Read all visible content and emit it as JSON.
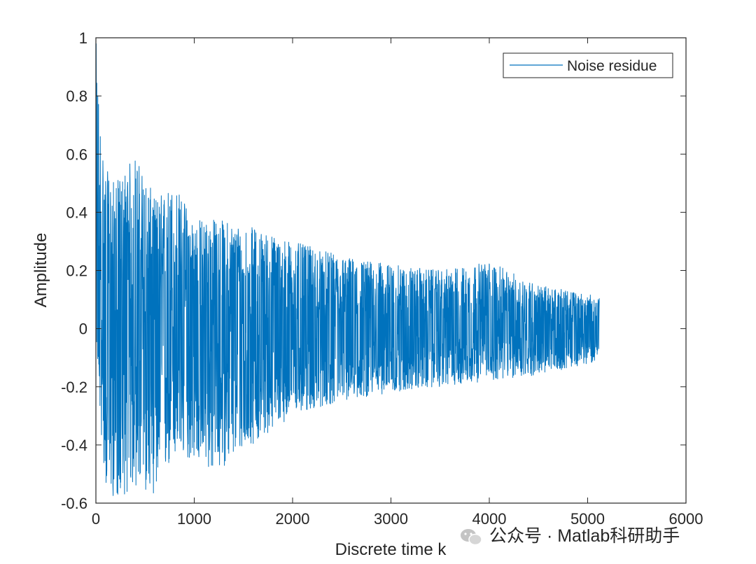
{
  "chart_data": {
    "type": "line",
    "xlabel": "Discrete time k",
    "ylabel": "Amplitude",
    "xlim": [
      0,
      6000
    ],
    "ylim": [
      -0.6,
      1
    ],
    "xticks": [
      0,
      1000,
      2000,
      3000,
      4000,
      5000,
      6000
    ],
    "yticks": [
      -0.6,
      -0.4,
      -0.2,
      0,
      0.2,
      0.4,
      0.6,
      0.8,
      1
    ],
    "xtick_labels": [
      "0",
      "1000",
      "2000",
      "3000",
      "4000",
      "5000",
      "6000"
    ],
    "ytick_labels": [
      "-0.6",
      "-0.4",
      "-0.2",
      "0",
      "0.2",
      "0.4",
      "0.6",
      "0.8",
      "1"
    ],
    "grid": false,
    "legend_position": "top-right",
    "series": [
      {
        "name": "Noise residue",
        "color": "#0072BD",
        "x_start": 1,
        "x_end": 5120,
        "envelope_x": [
          0,
          50,
          100,
          200,
          400,
          600,
          800,
          1000,
          1200,
          1500,
          2000,
          2500,
          3000,
          3500,
          4000,
          4500,
          5120
        ],
        "envelope_upper": [
          1.0,
          0.7,
          0.55,
          0.5,
          0.6,
          0.45,
          0.5,
          0.38,
          0.38,
          0.36,
          0.3,
          0.25,
          0.22,
          0.2,
          0.23,
          0.15,
          0.11
        ],
        "envelope_lower": [
          0.0,
          -0.35,
          -0.55,
          -0.59,
          -0.55,
          -0.57,
          -0.45,
          -0.45,
          -0.5,
          -0.42,
          -0.3,
          -0.25,
          -0.22,
          -0.2,
          -0.18,
          -0.16,
          -0.11
        ]
      }
    ]
  },
  "watermark": {
    "text": "公众号 · Matlab科研助手",
    "icon": "wechat-icon"
  }
}
